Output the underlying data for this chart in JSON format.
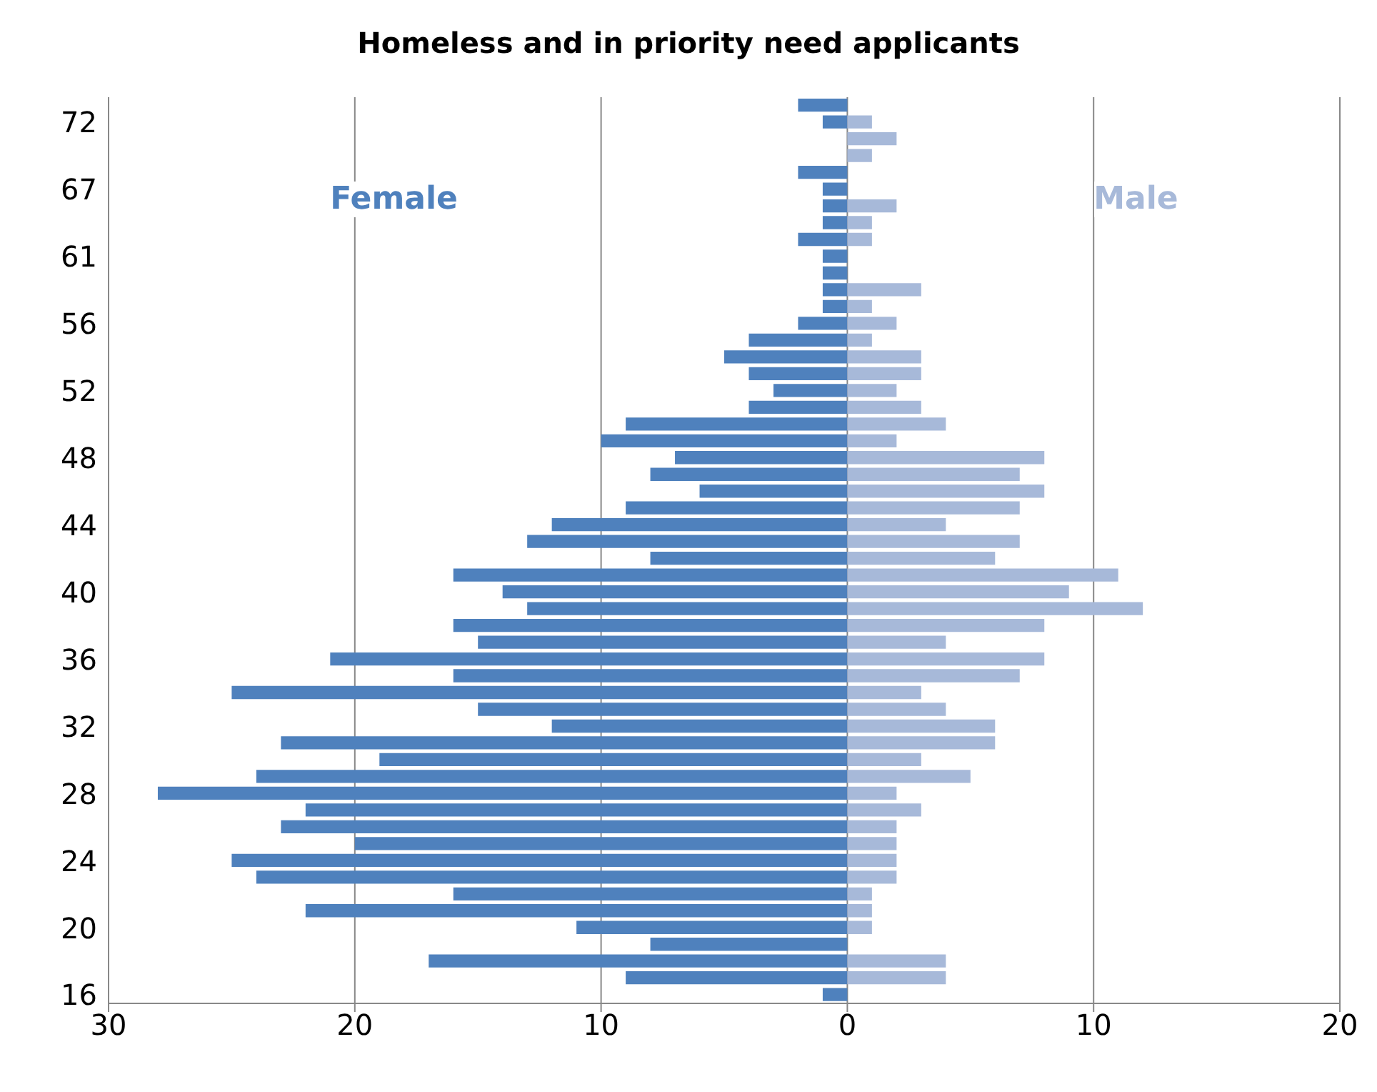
{
  "chart_data": {
    "type": "bar",
    "orientation": "horizontal",
    "title": "Homeless and in priority need applicants",
    "categories": [
      null,
      "72",
      null,
      null,
      null,
      "67",
      null,
      null,
      null,
      "61",
      null,
      null,
      null,
      "56",
      null,
      null,
      null,
      "52",
      null,
      null,
      null,
      "48",
      null,
      null,
      null,
      "44",
      null,
      null,
      null,
      "40",
      null,
      null,
      null,
      "36",
      null,
      null,
      null,
      "32",
      null,
      null,
      null,
      "28",
      null,
      null,
      null,
      "24",
      null,
      null,
      null,
      "20",
      null,
      null,
      null,
      "16"
    ],
    "series": [
      {
        "name": "Female",
        "color": "#4f81bd",
        "values": [
          -2,
          -1,
          0,
          0,
          -2,
          -1,
          -1,
          -1,
          -2,
          -1,
          -1,
          -1,
          -1,
          -2,
          -4,
          -5,
          -4,
          -3,
          -4,
          -9,
          -10,
          -7,
          -8,
          -6,
          -9,
          -12,
          -13,
          -8,
          -16,
          -14,
          -13,
          -16,
          -15,
          -21,
          -16,
          -25,
          -15,
          -12,
          -23,
          -19,
          -24,
          -28,
          -22,
          -23,
          -20,
          -25,
          -24,
          -16,
          -22,
          -11,
          -8,
          -17,
          -9,
          -1
        ]
      },
      {
        "name": "Male",
        "color": "#a7b9d9",
        "values": [
          0,
          1,
          2,
          1,
          0,
          0,
          2,
          1,
          1,
          0,
          0,
          3,
          1,
          2,
          1,
          3,
          3,
          2,
          3,
          4,
          2,
          8,
          7,
          8,
          7,
          4,
          7,
          6,
          11,
          9,
          12,
          8,
          4,
          8,
          7,
          3,
          4,
          6,
          6,
          3,
          5,
          2,
          3,
          2,
          2,
          2,
          2,
          1,
          1,
          1,
          0,
          4,
          4,
          0
        ]
      }
    ],
    "xlim": [
      -30,
      20
    ],
    "xticks": [
      {
        "value": -30,
        "label": "30"
      },
      {
        "value": -20,
        "label": "20"
      },
      {
        "value": -10,
        "label": "10"
      },
      0,
      10,
      20
    ],
    "grid": "x",
    "stacked": true
  }
}
